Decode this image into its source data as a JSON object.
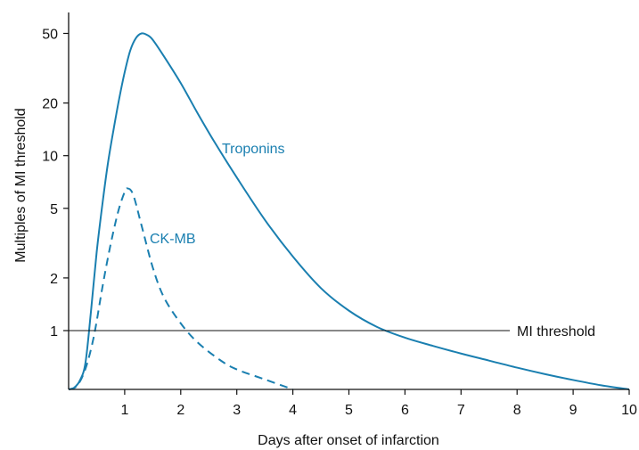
{
  "chart_data": {
    "type": "line",
    "title": "",
    "xlabel": "Days after onset of infarction",
    "ylabel": "Multiples of MI threshold",
    "x_ticks": [
      "1",
      "2",
      "3",
      "4",
      "5",
      "6",
      "7",
      "8",
      "9",
      "10"
    ],
    "y_ticks": [
      {
        "value": 1,
        "label": "1"
      },
      {
        "value": 2,
        "label": "2"
      },
      {
        "value": 5,
        "label": "5"
      },
      {
        "value": 10,
        "label": "10"
      },
      {
        "value": 20,
        "label": "20"
      },
      {
        "value": 50,
        "label": "50"
      }
    ],
    "xlim": [
      0,
      10
    ],
    "y_scale": "log",
    "grid": false,
    "colors": {
      "series": "#1a7fb0",
      "axis": "#111111",
      "threshold": "#111111"
    },
    "threshold": {
      "label": "MI threshold",
      "value": 1
    },
    "series": [
      {
        "name": "Troponins",
        "style": "solid",
        "points": [
          [
            0.0,
            0.0
          ],
          [
            0.1,
            0.03
          ],
          [
            0.2,
            0.15
          ],
          [
            0.3,
            0.45
          ],
          [
            0.4,
            1.3
          ],
          [
            0.5,
            2.8
          ],
          [
            0.6,
            5.2
          ],
          [
            0.7,
            9.0
          ],
          [
            0.8,
            14.0
          ],
          [
            0.9,
            21.0
          ],
          [
            1.0,
            30.0
          ],
          [
            1.1,
            40.0
          ],
          [
            1.2,
            47.0
          ],
          [
            1.3,
            50.0
          ],
          [
            1.4,
            49.0
          ],
          [
            1.5,
            46.0
          ],
          [
            1.7,
            37.0
          ],
          [
            2.0,
            26.0
          ],
          [
            2.3,
            17.5
          ],
          [
            2.6,
            12.0
          ],
          [
            3.0,
            7.5
          ],
          [
            3.5,
            4.3
          ],
          [
            4.0,
            2.65
          ],
          [
            4.5,
            1.75
          ],
          [
            5.0,
            1.3
          ],
          [
            5.5,
            1.05
          ],
          [
            6.0,
            0.88
          ],
          [
            6.5,
            0.74
          ],
          [
            7.0,
            0.61
          ],
          [
            7.5,
            0.49
          ],
          [
            8.0,
            0.37
          ],
          [
            8.5,
            0.26
          ],
          [
            9.0,
            0.16
          ],
          [
            9.5,
            0.07
          ],
          [
            10.0,
            0.0
          ]
        ]
      },
      {
        "name": "CK-MB",
        "style": "dashed",
        "points": [
          [
            0.0,
            0.0
          ],
          [
            0.15,
            0.06
          ],
          [
            0.3,
            0.35
          ],
          [
            0.45,
            0.9
          ],
          [
            0.6,
            1.75
          ],
          [
            0.7,
            2.6
          ],
          [
            0.8,
            3.7
          ],
          [
            0.9,
            5.0
          ],
          [
            1.0,
            6.2
          ],
          [
            1.05,
            6.5
          ],
          [
            1.15,
            6.0
          ],
          [
            1.3,
            4.0
          ],
          [
            1.5,
            2.3
          ],
          [
            1.7,
            1.55
          ],
          [
            2.0,
            1.1
          ],
          [
            2.3,
            0.8
          ],
          [
            2.7,
            0.5
          ],
          [
            3.0,
            0.34
          ],
          [
            3.5,
            0.17
          ],
          [
            4.0,
            0.0
          ]
        ]
      }
    ]
  }
}
